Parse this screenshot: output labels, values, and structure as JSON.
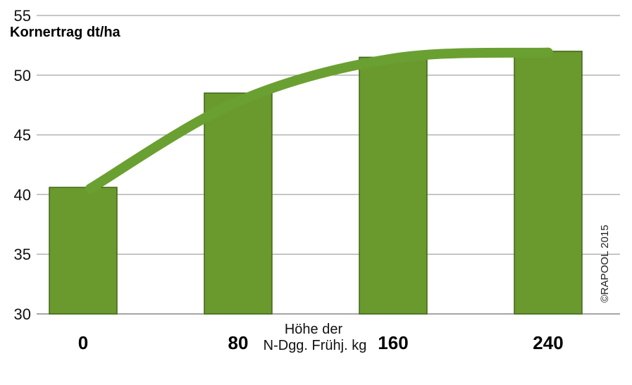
{
  "chart_data": {
    "type": "bar",
    "ylabel": "Kornertrag dt/ha",
    "xlabel_line1": "Höhe der",
    "xlabel_line2": "N-Dgg. Frühj. kg",
    "categories": [
      "0",
      "80",
      "160",
      "240"
    ],
    "values": [
      40.6,
      48.5,
      51.5,
      52.0
    ],
    "trend_line": [
      40.5,
      47.8,
      51.4,
      51.9
    ],
    "ylim": [
      30,
      55
    ],
    "yticks": [
      "30",
      "35",
      "40",
      "45",
      "50",
      "55"
    ],
    "grid": true,
    "credit": "©RAPOOL 2015",
    "colors": {
      "bar_fill": "#6a9a2e",
      "bar_stroke": "#3f6414",
      "trend": "#6aa031",
      "grid": "#b3b3b3"
    }
  }
}
